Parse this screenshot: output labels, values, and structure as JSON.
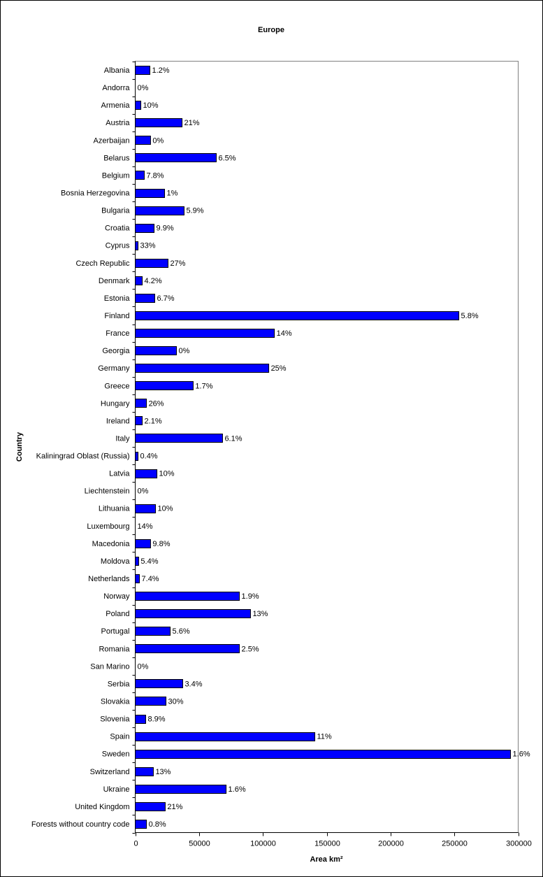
{
  "chart_data": {
    "type": "bar",
    "orientation": "horizontal",
    "title": "Europe",
    "xlabel": "Area km²",
    "ylabel": "Country",
    "xlim": [
      0,
      300000
    ],
    "xticks": [
      0,
      50000,
      100000,
      150000,
      200000,
      250000,
      300000
    ],
    "grid": false,
    "bar_color": "#0000ff",
    "categories": [
      "Albania",
      "Andorra",
      "Armenia",
      "Austria",
      "Azerbaijan",
      "Belarus",
      "Belgium",
      "Bosnia Herzegovina",
      "Bulgaria",
      "Croatia",
      "Cyprus",
      "Czech Republic",
      "Denmark",
      "Estonia",
      "Finland",
      "France",
      "Georgia",
      "Germany",
      "Greece",
      "Hungary",
      "Ireland",
      "Italy",
      "Kaliningrad Oblast (Russia)",
      "Latvia",
      "Liechtenstein",
      "Lithuania",
      "Luxembourg",
      "Macedonia",
      "Moldova",
      "Netherlands",
      "Norway",
      "Poland",
      "Portugal",
      "Romania",
      "San Marino",
      "Serbia",
      "Slovakia",
      "Slovenia",
      "Spain",
      "Sweden",
      "Switzerland",
      "Ukraine",
      "United Kingdom",
      "Forests without country code"
    ],
    "values": [
      11500,
      0,
      4400,
      36700,
      12000,
      63500,
      7100,
      23000,
      38300,
      14800,
      2200,
      25700,
      5500,
      15300,
      253500,
      109000,
      32300,
      104600,
      45400,
      8800,
      5500,
      68400,
      2200,
      17000,
      0,
      15900,
      0,
      12000,
      2700,
      3300,
      81600,
      90300,
      27400,
      81600,
      0,
      37200,
      24100,
      8200,
      140700,
      294000,
      14200,
      71200,
      23500,
      8800
    ],
    "data_labels": [
      "1.2%",
      "0%",
      "10%",
      "21%",
      "0%",
      "6.5%",
      "7.8%",
      "1%",
      "5.9%",
      "9.9%",
      "33%",
      "27%",
      "4.2%",
      "6.7%",
      "5.8%",
      "14%",
      "0%",
      "25%",
      "1.7%",
      "26%",
      "2.1%",
      "6.1%",
      "0.4%",
      "10%",
      "0%",
      "10%",
      "14%",
      "9.8%",
      "5.4%",
      "7.4%",
      "1.9%",
      "13%",
      "5.6%",
      "2.5%",
      "0%",
      "3.4%",
      "30%",
      "8.9%",
      "11%",
      "1.6%",
      "13%",
      "1.6%",
      "21%",
      "0.8%"
    ]
  }
}
